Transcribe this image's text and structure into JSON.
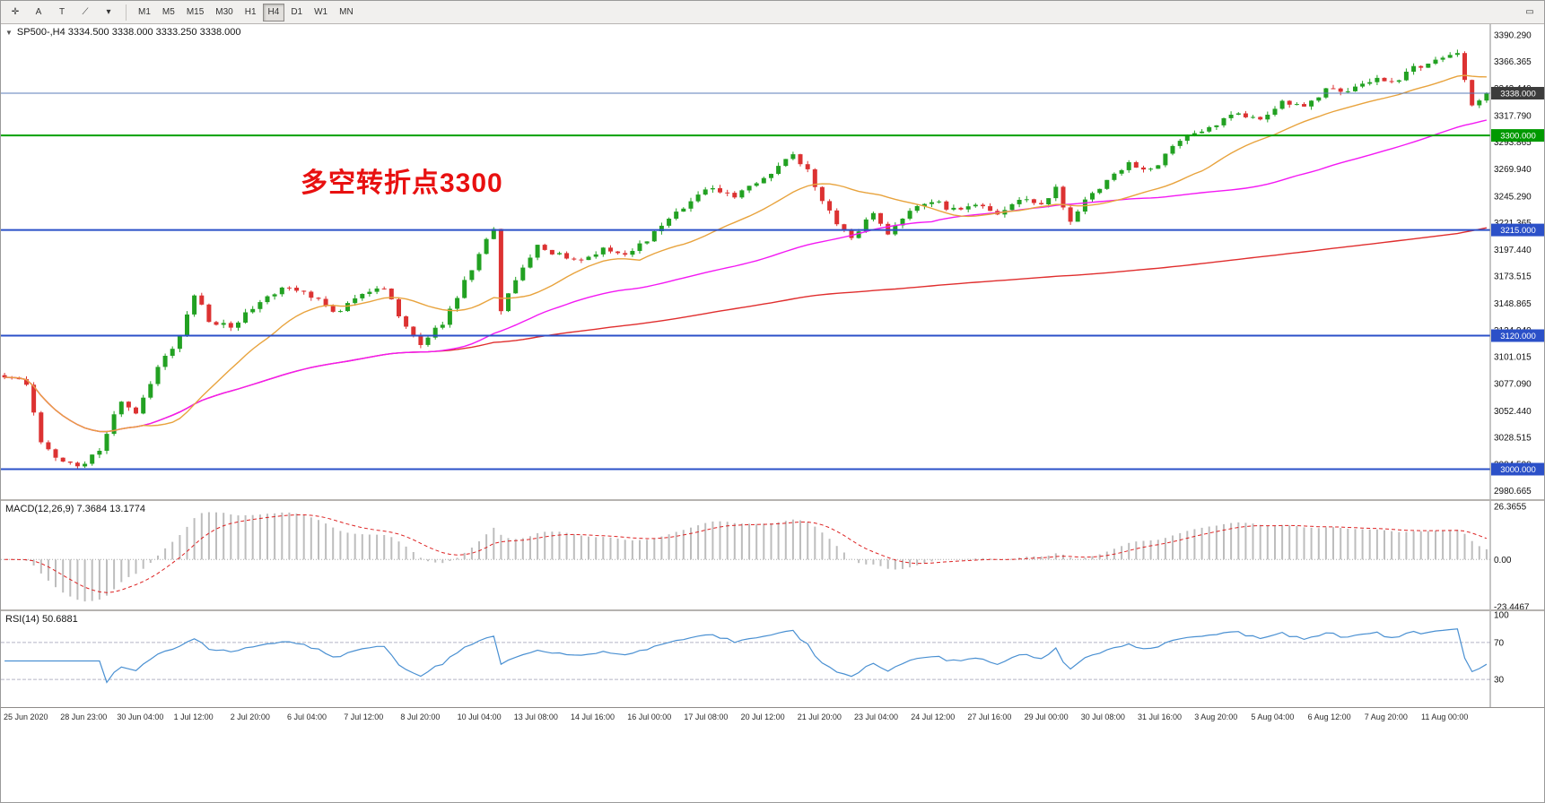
{
  "toolbar": {
    "icons": [
      {
        "name": "crosshair-icon",
        "glyph": "✛"
      },
      {
        "name": "text-label-icon",
        "glyph": "A"
      },
      {
        "name": "text-tool-icon",
        "glyph": "T"
      },
      {
        "name": "draw-tools-icon",
        "glyph": "⟋"
      },
      {
        "name": "dropdown-caret-icon",
        "glyph": "▾"
      }
    ],
    "timeframes": [
      "M1",
      "M5",
      "M15",
      "M30",
      "H1",
      "H4",
      "D1",
      "W1",
      "MN"
    ],
    "active_timeframe": "H4",
    "window_icon": "▭"
  },
  "chart_header": {
    "caret": "▼",
    "text": "SP500-,H4  3334.500 3338.000 3333.250 3338.000"
  },
  "annotation": {
    "text": "多空转折点3300",
    "color": "#e81010"
  },
  "price_axis": {
    "top_price": 3400,
    "bottom_price": 2973,
    "labels": [
      "3390.290",
      "3366.365",
      "3342.440",
      "3317.790",
      "3293.865",
      "3269.940",
      "3245.290",
      "3221.365",
      "3197.440",
      "3173.515",
      "3148.865",
      "3124.940",
      "3101.015",
      "3077.090",
      "3052.440",
      "3028.515",
      "3004.590",
      "2980.665"
    ]
  },
  "hlines": [
    {
      "price": 3338.0,
      "color": "#5b7cb8",
      "width": 1,
      "tag": "3338.000",
      "tag_bg": "#3c3c3c"
    },
    {
      "price": 3300.0,
      "color": "#00a000",
      "width": 2,
      "tag": "3300.000",
      "tag_bg": "#009900"
    },
    {
      "price": 3215.0,
      "color": "#2b50c8",
      "width": 2,
      "tag": "3215.000",
      "tag_bg": "#2b50c8"
    },
    {
      "price": 3120.0,
      "color": "#2b50c8",
      "width": 2,
      "tag": "3120.000",
      "tag_bg": "#2b50c8"
    },
    {
      "price": 3000.0,
      "color": "#2b50c8",
      "width": 2,
      "tag": "3000.000",
      "tag_bg": "#2b50c8"
    }
  ],
  "indicators": {
    "macd": {
      "label": "MACD(12,26,9) 7.3684 13.1774",
      "axis": [
        "26.3655",
        "0.00",
        "-23.4467"
      ],
      "histogram_color": "#bdbdbd",
      "signal_color": "#dd2222"
    },
    "rsi": {
      "label": "RSI(14) 50.6881",
      "axis": [
        "100",
        "70",
        "30"
      ],
      "levels": [
        70,
        30
      ],
      "line_color": "#4a90d2"
    }
  },
  "time_axis": {
    "labels": [
      "25 Jun 2020",
      "28 Jun 23:00",
      "30 Jun 04:00",
      "1 Jul 12:00",
      "2 Jul 20:00",
      "6 Jul 04:00",
      "7 Jul 12:00",
      "8 Jul 20:00",
      "10 Jul 04:00",
      "13 Jul 08:00",
      "14 Jul 16:00",
      "16 Jul 00:00",
      "17 Jul 08:00",
      "20 Jul 12:00",
      "21 Jul 20:00",
      "23 Jul 04:00",
      "24 Jul 12:00",
      "27 Jul 16:00",
      "29 Jul 00:00",
      "30 Jul 08:00",
      "31 Jul 16:00",
      "3 Aug 20:00",
      "5 Aug 04:00",
      "6 Aug 12:00",
      "7 Aug 20:00",
      "11 Aug 00:00"
    ]
  },
  "chart_data": {
    "type": "candlestick",
    "symbol": "SP500-",
    "timeframe": "H4",
    "title": "SP500-,H4",
    "current_ohlc": {
      "open": 3334.5,
      "high": 3338.0,
      "low": 3333.25,
      "close": 3338.0
    },
    "visible_range": {
      "start": "25 Jun 2020",
      "end": "11 Aug 00:00"
    },
    "price_range": [
      2973,
      3400
    ],
    "bar_count": 204,
    "noise": 5,
    "close_anchors": [
      [
        0,
        3085
      ],
      [
        3,
        3078
      ],
      [
        5,
        3025
      ],
      [
        8,
        3006
      ],
      [
        11,
        3004
      ],
      [
        13,
        3018
      ],
      [
        16,
        3062
      ],
      [
        18,
        3052
      ],
      [
        21,
        3092
      ],
      [
        24,
        3120
      ],
      [
        26,
        3158
      ],
      [
        28,
        3133
      ],
      [
        31,
        3128
      ],
      [
        35,
        3152
      ],
      [
        38,
        3163
      ],
      [
        42,
        3156
      ],
      [
        45,
        3140
      ],
      [
        49,
        3158
      ],
      [
        52,
        3162
      ],
      [
        55,
        3128
      ],
      [
        57,
        3112
      ],
      [
        60,
        3132
      ],
      [
        63,
        3168
      ],
      [
        65,
        3194
      ],
      [
        67,
        3216
      ],
      [
        68,
        3142
      ],
      [
        70,
        3170
      ],
      [
        73,
        3200
      ],
      [
        76,
        3193
      ],
      [
        79,
        3187
      ],
      [
        82,
        3199
      ],
      [
        85,
        3193
      ],
      [
        88,
        3207
      ],
      [
        91,
        3224
      ],
      [
        94,
        3240
      ],
      [
        97,
        3254
      ],
      [
        100,
        3243
      ],
      [
        103,
        3259
      ],
      [
        106,
        3272
      ],
      [
        108,
        3284
      ],
      [
        110,
        3268
      ],
      [
        112,
        3242
      ],
      [
        114,
        3222
      ],
      [
        116,
        3208
      ],
      [
        119,
        3230
      ],
      [
        121,
        3212
      ],
      [
        124,
        3234
      ],
      [
        127,
        3241
      ],
      [
        130,
        3233
      ],
      [
        133,
        3239
      ],
      [
        136,
        3229
      ],
      [
        139,
        3243
      ],
      [
        142,
        3236
      ],
      [
        144,
        3252
      ],
      [
        146,
        3222
      ],
      [
        148,
        3242
      ],
      [
        151,
        3260
      ],
      [
        154,
        3276
      ],
      [
        157,
        3268
      ],
      [
        160,
        3290
      ],
      [
        163,
        3302
      ],
      [
        166,
        3310
      ],
      [
        169,
        3320
      ],
      [
        172,
        3316
      ],
      [
        175,
        3330
      ],
      [
        178,
        3324
      ],
      [
        181,
        3342
      ],
      [
        184,
        3338
      ],
      [
        187,
        3350
      ],
      [
        190,
        3348
      ],
      [
        193,
        3360
      ],
      [
        196,
        3366
      ],
      [
        199,
        3374
      ],
      [
        200,
        3350
      ],
      [
        201,
        3328
      ],
      [
        203,
        3338
      ]
    ],
    "colors": {
      "up": "#22a122",
      "down": "#dc3232",
      "ma_fast": "#e8a33d",
      "ma_mid": "#f318f3",
      "ma_slow": "#e02e2e"
    },
    "ma_periods": {
      "fast": 20,
      "mid": 60,
      "slow": 200
    },
    "macd_params": [
      12,
      26,
      9
    ],
    "rsi_period": 14
  }
}
